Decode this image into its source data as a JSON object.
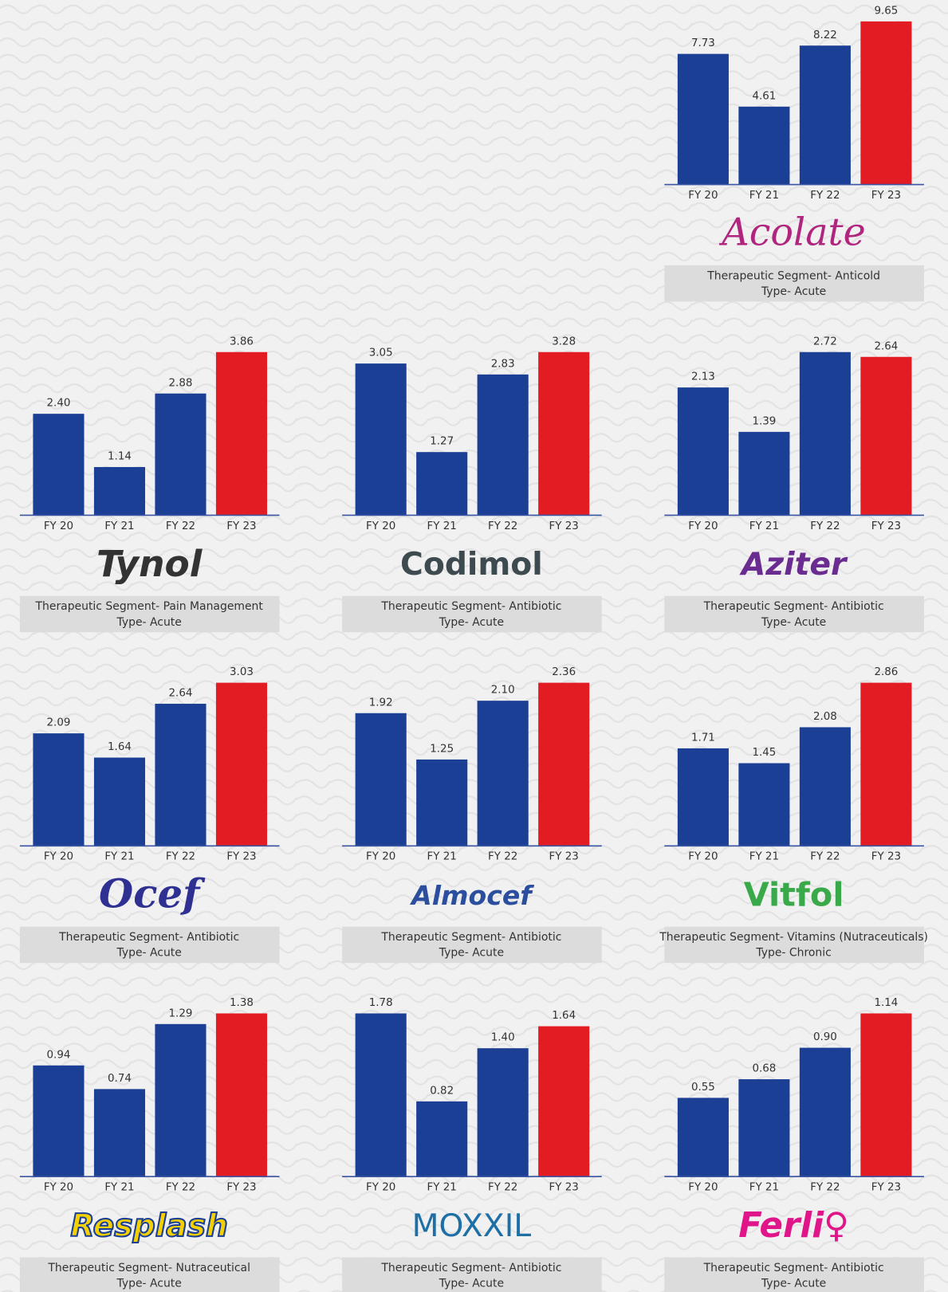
{
  "chart_data": [
    {
      "type": "bar",
      "title": "Acolate",
      "notes": [
        "Therapeutic Segment- Anticold",
        "Type- Acute"
      ],
      "categories": [
        "FY 20",
        "FY 21",
        "FY 22",
        "FY 23"
      ],
      "values": [
        7.73,
        4.61,
        8.22,
        9.65
      ],
      "value_labels": [
        "7.73",
        "4.61",
        "8.22",
        "9.65"
      ],
      "colors": [
        "#1b3f95",
        "#1b3f95",
        "#1b3f95",
        "#e31b23"
      ],
      "ylim": [
        0,
        9.65
      ]
    },
    {
      "type": "bar",
      "title": "Tynol",
      "notes": [
        "Therapeutic Segment- Pain Management",
        "Type- Acute"
      ],
      "categories": [
        "FY 20",
        "FY 21",
        "FY 22",
        "FY 23"
      ],
      "values": [
        2.4,
        1.14,
        2.88,
        3.86
      ],
      "value_labels": [
        "2.40",
        "1.14",
        "2.88",
        "3.86"
      ],
      "colors": [
        "#1b3f95",
        "#1b3f95",
        "#1b3f95",
        "#e31b23"
      ],
      "ylim": [
        0,
        3.86
      ]
    },
    {
      "type": "bar",
      "title": "Codimol",
      "notes": [
        "Therapeutic Segment- Antibiotic",
        "Type- Acute"
      ],
      "categories": [
        "FY 20",
        "FY 21",
        "FY 22",
        "FY 23"
      ],
      "values": [
        3.05,
        1.27,
        2.83,
        3.28
      ],
      "value_labels": [
        "3.05",
        "1.27",
        "2.83",
        "3.28"
      ],
      "colors": [
        "#1b3f95",
        "#1b3f95",
        "#1b3f95",
        "#e31b23"
      ],
      "ylim": [
        0,
        3.28
      ]
    },
    {
      "type": "bar",
      "title": "Aziter",
      "notes": [
        "Therapeutic Segment- Antibiotic",
        "Type- Acute"
      ],
      "categories": [
        "FY 20",
        "FY 21",
        "FY 22",
        "FY 23"
      ],
      "values": [
        2.13,
        1.39,
        2.72,
        2.64
      ],
      "value_labels": [
        "2.13",
        "1.39",
        "2.72",
        "2.64"
      ],
      "colors": [
        "#1b3f95",
        "#1b3f95",
        "#1b3f95",
        "#e31b23"
      ],
      "ylim": [
        0,
        2.72
      ]
    },
    {
      "type": "bar",
      "title": "Ocef",
      "notes": [
        "Therapeutic Segment- Antibiotic",
        "Type- Acute"
      ],
      "categories": [
        "FY 20",
        "FY 21",
        "FY 22",
        "FY 23"
      ],
      "values": [
        2.09,
        1.64,
        2.64,
        3.03
      ],
      "value_labels": [
        "2.09",
        "1.64",
        "2.64",
        "3.03"
      ],
      "colors": [
        "#1b3f95",
        "#1b3f95",
        "#1b3f95",
        "#e31b23"
      ],
      "ylim": [
        0,
        3.03
      ]
    },
    {
      "type": "bar",
      "title": "Almocef",
      "notes": [
        "Therapeutic Segment- Antibiotic",
        "Type- Acute"
      ],
      "categories": [
        "FY 20",
        "FY 21",
        "FY 22",
        "FY 23"
      ],
      "values": [
        1.92,
        1.25,
        2.1,
        2.36
      ],
      "value_labels": [
        "1.92",
        "1.25",
        "2.10",
        "2.36"
      ],
      "colors": [
        "#1b3f95",
        "#1b3f95",
        "#1b3f95",
        "#e31b23"
      ],
      "ylim": [
        0,
        2.36
      ]
    },
    {
      "type": "bar",
      "title": "Vitfol",
      "notes": [
        "Therapeutic Segment- Vitamins (Nutraceuticals)",
        "Type- Chronic"
      ],
      "categories": [
        "FY 20",
        "FY 21",
        "FY 22",
        "FY 23"
      ],
      "values": [
        1.71,
        1.45,
        2.08,
        2.86
      ],
      "value_labels": [
        "1.71",
        "1.45",
        "2.08",
        "2.86"
      ],
      "colors": [
        "#1b3f95",
        "#1b3f95",
        "#1b3f95",
        "#e31b23"
      ],
      "ylim": [
        0,
        2.86
      ]
    },
    {
      "type": "bar",
      "title": "Resplash",
      "notes": [
        "Therapeutic Segment- Nutraceutical",
        "Type- Acute"
      ],
      "categories": [
        "FY 20",
        "FY 21",
        "FY 22",
        "FY 23"
      ],
      "values": [
        0.94,
        0.74,
        1.29,
        1.38
      ],
      "value_labels": [
        "0.94",
        "0.74",
        "1.29",
        "1.38"
      ],
      "colors": [
        "#1b3f95",
        "#1b3f95",
        "#1b3f95",
        "#e31b23"
      ],
      "ylim": [
        0,
        1.38
      ]
    },
    {
      "type": "bar",
      "title": "MOXXIL",
      "notes": [
        "Therapeutic Segment- Antibiotic",
        "Type- Acute"
      ],
      "categories": [
        "FY 20",
        "FY 21",
        "FY 22",
        "FY 23"
      ],
      "values": [
        1.78,
        0.82,
        1.4,
        1.64
      ],
      "value_labels": [
        "1.78",
        "0.82",
        "1.40",
        "1.64"
      ],
      "colors": [
        "#1b3f95",
        "#1b3f95",
        "#1b3f95",
        "#e31b23"
      ],
      "ylim": [
        0,
        1.78
      ]
    },
    {
      "type": "bar",
      "title": "Ferli♀",
      "notes": [
        "Therapeutic Segment- Antibiotic",
        "Type- Acute"
      ],
      "categories": [
        "FY 20",
        "FY 21",
        "FY 22",
        "FY 23"
      ],
      "values": [
        0.55,
        0.68,
        0.9,
        1.14
      ],
      "value_labels": [
        "0.55",
        "0.68",
        "0.90",
        "1.14"
      ],
      "colors": [
        "#1b3f95",
        "#1b3f95",
        "#1b3f95",
        "#e31b23"
      ],
      "ylim": [
        0,
        1.14
      ]
    }
  ]
}
